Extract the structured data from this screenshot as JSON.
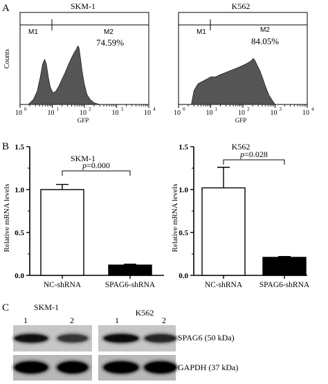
{
  "panel_labels": {
    "a": "A",
    "b": "B",
    "c": "C"
  },
  "chart_data": [
    {
      "type": "area",
      "title": "SKM-1",
      "xlabel": "GFP",
      "ylabel": "Counts",
      "xscale": "log",
      "xlim": [
        1,
        10000
      ],
      "xticks": [
        "10",
        "10",
        "10",
        "10",
        "10"
      ],
      "xtick_exponents": [
        "0",
        "1",
        "2",
        "3",
        "4"
      ],
      "gates": [
        {
          "name": "M1",
          "x": [
            1,
            10
          ]
        },
        {
          "name": "M2",
          "x": [
            10,
            10000
          ]
        }
      ],
      "annotation": "74.59%",
      "series": [
        {
          "x": [
            1.8,
            2.6,
            3.4,
            4.2,
            5.0,
            5.8,
            6.6,
            7.6,
            8.8,
            10.5,
            13,
            16,
            20,
            25,
            32,
            40,
            48,
            56,
            62,
            68,
            75,
            85,
            100,
            120,
            150,
            200,
            300
          ],
          "y": [
            0,
            3,
            8,
            16,
            24,
            27,
            24,
            16,
            10,
            7,
            8,
            11,
            15,
            19,
            24,
            28,
            31,
            33,
            35,
            34,
            28,
            20,
            12,
            6,
            3,
            1,
            0
          ]
        }
      ]
    },
    {
      "type": "area",
      "title": "K562",
      "xlabel": "GFP",
      "ylabel": "",
      "xscale": "log",
      "xlim": [
        1,
        10000
      ],
      "xticks": [
        "10",
        "10",
        "10",
        "10",
        "10"
      ],
      "xtick_exponents": [
        "0",
        "1",
        "2",
        "3",
        "4"
      ],
      "gates": [
        {
          "name": "M1",
          "x": [
            1,
            10
          ]
        },
        {
          "name": "M2",
          "x": [
            10,
            10000
          ]
        }
      ],
      "annotation": "84.05%",
      "series": [
        {
          "x": [
            2.5,
            3.0,
            4.0,
            5.5,
            7.5,
            10,
            14,
            20,
            30,
            45,
            70,
            100,
            140,
            180,
            210,
            240,
            280,
            330,
            400,
            500,
            650,
            800,
            1000
          ],
          "y": [
            0,
            6,
            9,
            10,
            11,
            12,
            12,
            13,
            14,
            15,
            16,
            17,
            18,
            19,
            20,
            19,
            17,
            15,
            12,
            8,
            4,
            2,
            0
          ]
        }
      ]
    },
    {
      "type": "bar",
      "title": "SKM-1",
      "xlabel": "",
      "ylabel": "Relative mRNA levels",
      "ylim": [
        0,
        1.5
      ],
      "yticks": [
        "0.0",
        "0.5",
        "1.0",
        "1.5"
      ],
      "categories": [
        "NC-shRNA",
        "SPAG6-shRNA"
      ],
      "values": [
        1.0,
        0.12
      ],
      "errors": [
        0.06,
        0.01
      ],
      "bar_colors": [
        "#ffffff",
        "#000000"
      ],
      "significance": {
        "p_label": "p",
        "p_value": "=0.000"
      }
    },
    {
      "type": "bar",
      "title": "K562",
      "xlabel": "",
      "ylabel": "Relative mRNA levels",
      "ylim": [
        0,
        1.5
      ],
      "yticks": [
        "0.0",
        "0.5",
        "1.0",
        "1.5"
      ],
      "categories": [
        "NC-shRNA",
        "SPAG6-shRNA"
      ],
      "values": [
        1.02,
        0.21
      ],
      "errors": [
        0.24,
        0.01
      ],
      "bar_colors": [
        "#ffffff",
        "#000000"
      ],
      "significance": {
        "p_label": "p",
        "p_value": "=0.028"
      }
    }
  ],
  "blot": {
    "groups": [
      {
        "name": "SKM-1",
        "lanes": [
          "1",
          "2"
        ]
      },
      {
        "name": "K562",
        "lanes": [
          "1",
          "2"
        ]
      }
    ],
    "rows": [
      {
        "label": "SPAG6 (50 kDa)",
        "intensity": [
          0.85,
          0.6,
          0.9,
          0.7
        ]
      },
      {
        "label": "GAPDH (37 kDa)",
        "intensity": [
          1.0,
          1.0,
          1.0,
          1.0
        ]
      }
    ]
  }
}
